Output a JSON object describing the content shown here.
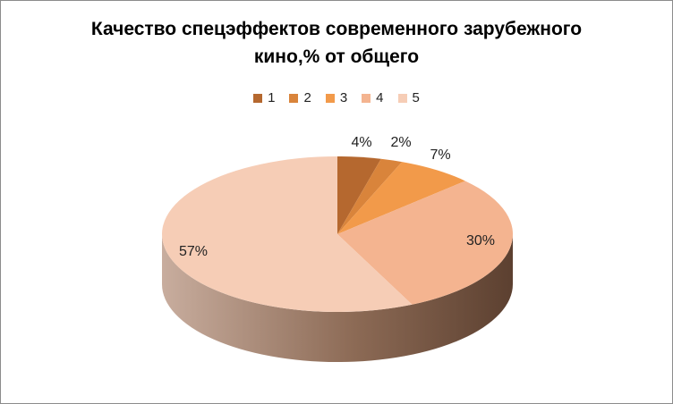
{
  "chart_data": {
    "type": "pie",
    "title_lines": [
      "Качество спецэффектов современного зарубежного",
      "кино,% от общего"
    ],
    "categories": [
      "1",
      "2",
      "3",
      "4",
      "5"
    ],
    "values": [
      4,
      2,
      7,
      30,
      57
    ],
    "labels": [
      "4%",
      "2%",
      "7%",
      "30%",
      "57%"
    ],
    "colors": [
      "#b5682f",
      "#d9843b",
      "#f29a4a",
      "#f4b490",
      "#f6cdb6"
    ],
    "legend_position": "top",
    "style": "3d"
  }
}
